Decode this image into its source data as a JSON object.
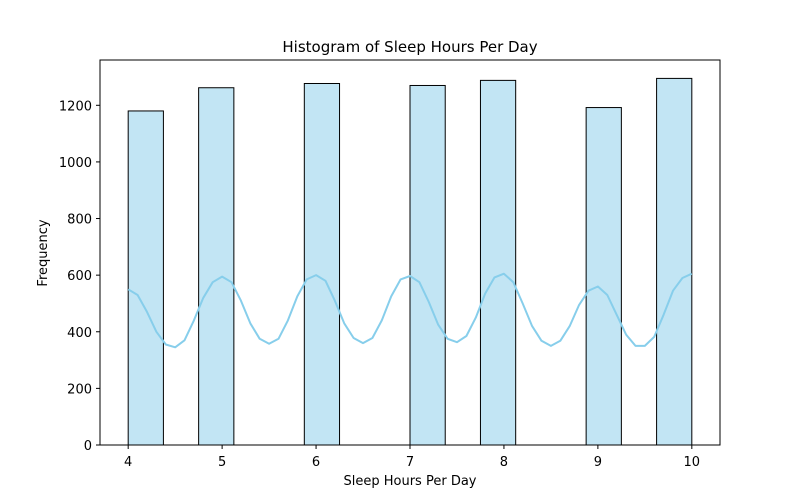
{
  "chart_data": {
    "type": "bar",
    "title": "Histogram of Sleep Hours Per Day",
    "xlabel": "Sleep Hours Per Day",
    "ylabel": "Frequency",
    "xlim": [
      3.7,
      10.3
    ],
    "ylim": [
      0,
      1360
    ],
    "xticks": [
      4,
      5,
      6,
      7,
      8,
      9,
      10
    ],
    "yticks": [
      0,
      200,
      400,
      600,
      800,
      1000,
      1200
    ],
    "bars": [
      {
        "x0": 4.0,
        "x1": 4.375,
        "value": 1180
      },
      {
        "x0": 4.75,
        "x1": 5.125,
        "value": 1262
      },
      {
        "x0": 5.875,
        "x1": 6.25,
        "value": 1277
      },
      {
        "x0": 7.0,
        "x1": 7.375,
        "value": 1270
      },
      {
        "x0": 7.75,
        "x1": 8.125,
        "value": 1288
      },
      {
        "x0": 8.875,
        "x1": 9.25,
        "value": 1192
      },
      {
        "x0": 9.625,
        "x1": 10.0,
        "value": 1295
      }
    ],
    "kde": {
      "x": [
        4.0,
        4.1,
        4.2,
        4.3,
        4.4,
        4.5,
        4.6,
        4.7,
        4.8,
        4.9,
        5.0,
        5.1,
        5.2,
        5.3,
        5.4,
        5.5,
        5.6,
        5.7,
        5.8,
        5.9,
        6.0,
        6.1,
        6.2,
        6.3,
        6.4,
        6.5,
        6.6,
        6.7,
        6.8,
        6.9,
        7.0,
        7.1,
        7.2,
        7.3,
        7.4,
        7.5,
        7.6,
        7.7,
        7.8,
        7.9,
        8.0,
        8.1,
        8.2,
        8.3,
        8.4,
        8.5,
        8.6,
        8.7,
        8.8,
        8.9,
        9.0,
        9.1,
        9.2,
        9.3,
        9.4,
        9.5,
        9.6,
        9.7,
        9.8,
        9.9,
        10.0
      ],
      "y": [
        550,
        530,
        470,
        400,
        355,
        345,
        370,
        440,
        520,
        575,
        595,
        575,
        510,
        430,
        375,
        358,
        375,
        440,
        525,
        585,
        600,
        580,
        510,
        430,
        378,
        360,
        378,
        440,
        525,
        585,
        597,
        575,
        505,
        425,
        375,
        363,
        385,
        450,
        535,
        592,
        605,
        575,
        500,
        420,
        368,
        350,
        368,
        420,
        495,
        545,
        560,
        530,
        460,
        390,
        350,
        350,
        382,
        460,
        545,
        590,
        605
      ]
    },
    "colors": {
      "bar_fill": "#c2e5f4",
      "bar_edge": "#000000",
      "kde_line": "#87ceeb",
      "axes": "#000000"
    },
    "grid": false,
    "legend": "none"
  }
}
